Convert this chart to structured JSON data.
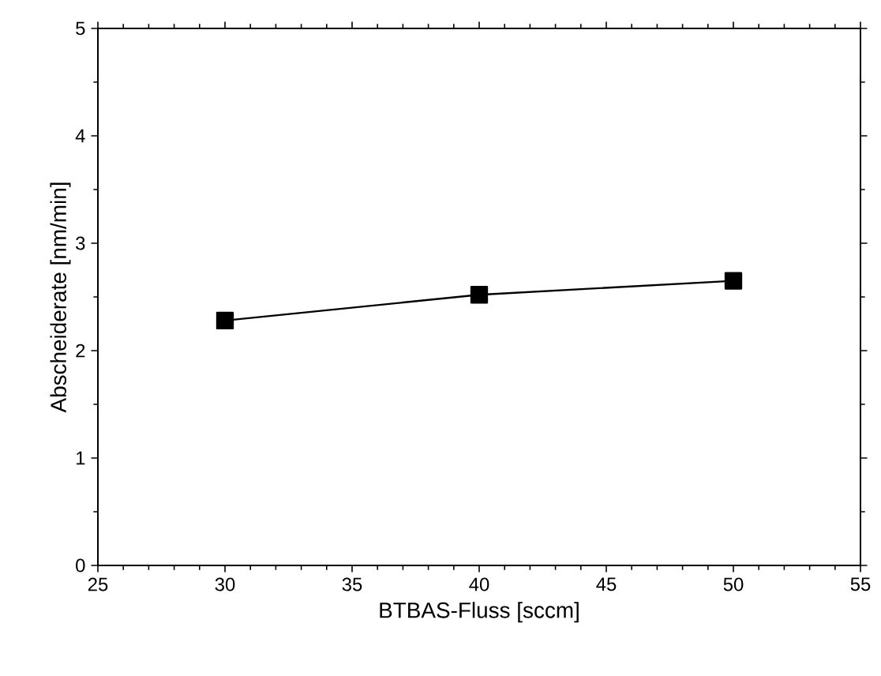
{
  "chart_data": {
    "type": "line",
    "xlabel": "BTBAS-Fluss [sccm]",
    "ylabel": "Abscheiderate [nm/min]",
    "x": [
      30,
      40,
      50
    ],
    "series": [
      {
        "color": "#000000",
        "values": [
          2.28,
          2.52,
          2.65
        ]
      }
    ],
    "xlim": [
      25,
      55
    ],
    "xticks": [
      25,
      30,
      35,
      40,
      45,
      50,
      55
    ],
    "ylim": [
      0,
      5
    ],
    "yticks": [
      0,
      1,
      2,
      3,
      4,
      5
    ],
    "marker": "square",
    "line_style": "solid",
    "grid": false
  }
}
